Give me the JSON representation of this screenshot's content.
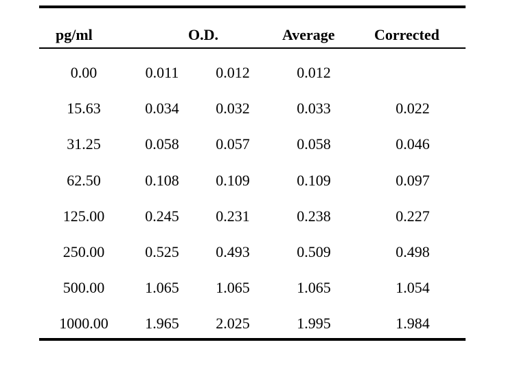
{
  "table": {
    "headers": {
      "concentration": "pg/ml",
      "od": "O.D.",
      "average": "Average",
      "corrected": "Corrected"
    },
    "rows": [
      {
        "concentration": "0.00",
        "od1": "0.011",
        "od2": "0.012",
        "average": "0.012",
        "corrected": ""
      },
      {
        "concentration": "15.63",
        "od1": "0.034",
        "od2": "0.032",
        "average": "0.033",
        "corrected": "0.022"
      },
      {
        "concentration": "31.25",
        "od1": "0.058",
        "od2": "0.057",
        "average": "0.058",
        "corrected": "0.046"
      },
      {
        "concentration": "62.50",
        "od1": "0.108",
        "od2": "0.109",
        "average": "0.109",
        "corrected": "0.097"
      },
      {
        "concentration": "125.00",
        "od1": "0.245",
        "od2": "0.231",
        "average": "0.238",
        "corrected": "0.227"
      },
      {
        "concentration": "250.00",
        "od1": "0.525",
        "od2": "0.493",
        "average": "0.509",
        "corrected": "0.498"
      },
      {
        "concentration": "500.00",
        "od1": "1.065",
        "od2": "1.065",
        "average": "1.065",
        "corrected": "1.054"
      },
      {
        "concentration": "1000.00",
        "od1": "1.965",
        "od2": "2.025",
        "average": "1.995",
        "corrected": "1.984"
      }
    ]
  }
}
